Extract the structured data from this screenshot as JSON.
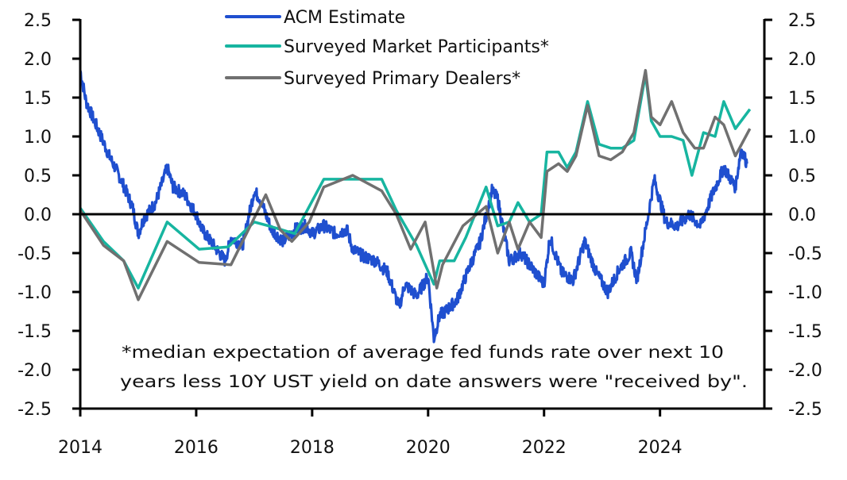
{
  "chart_data": {
    "type": "line",
    "title": "",
    "xlabel": "",
    "ylabel": "",
    "xlim": [
      2014.0,
      2025.8
    ],
    "ylim": [
      -2.5,
      2.5
    ],
    "x_ticks": [
      2014,
      2016,
      2018,
      2020,
      2022,
      2024
    ],
    "x_tick_labels": [
      "2014",
      "2016",
      "2018",
      "2020",
      "2022",
      "2024"
    ],
    "y_ticks": [
      2.5,
      2.0,
      1.5,
      1.0,
      0.5,
      0.0,
      -0.5,
      -1.0,
      -1.5,
      -2.0,
      -2.5
    ],
    "y_tick_labels": [
      "2.5",
      "2.0",
      "1.5",
      "1.0",
      "0.5",
      "0.0",
      "-0.5",
      "-1.0",
      "-1.5",
      "-2.0",
      "-2.5"
    ],
    "y_right_tick_labels": [
      "2.5",
      "2.0",
      "1.5",
      "1.0",
      "0.5",
      "0.0",
      "-0.5",
      "-1.0",
      "-1.5",
      "-2.0",
      "-2.5"
    ],
    "grid": false,
    "legend_position": "top-center",
    "annotation": [
      "*median expectation of average fed funds rate over next 10",
      "years less 10Y UST yield on date answers were \"received by\"."
    ],
    "series": [
      {
        "name": "ACM Estimate",
        "color": "#1f4fcf",
        "x": [
          2014.0,
          2014.1,
          2014.3,
          2014.5,
          2014.7,
          2014.9,
          2015.0,
          2015.1,
          2015.3,
          2015.5,
          2015.6,
          2015.8,
          2016.0,
          2016.1,
          2016.3,
          2016.5,
          2016.6,
          2016.8,
          2017.0,
          2017.1,
          2017.3,
          2017.5,
          2017.7,
          2017.9,
          2018.0,
          2018.2,
          2018.4,
          2018.6,
          2018.7,
          2018.9,
          2019.1,
          2019.3,
          2019.5,
          2019.6,
          2019.8,
          2020.0,
          2020.1,
          2020.2,
          2020.3,
          2020.5,
          2020.7,
          2020.9,
          2021.1,
          2021.2,
          2021.4,
          2021.6,
          2021.8,
          2022.0,
          2022.1,
          2022.3,
          2022.5,
          2022.7,
          2022.9,
          2023.1,
          2023.3,
          2023.5,
          2023.6,
          2023.8,
          2023.9,
          2024.1,
          2024.3,
          2024.5,
          2024.7,
          2024.9,
          2025.1,
          2025.3,
          2025.4,
          2025.5
        ],
        "values": [
          1.85,
          1.45,
          1.1,
          0.75,
          0.45,
          0.1,
          -0.25,
          -0.05,
          0.15,
          0.6,
          0.35,
          0.25,
          0.0,
          -0.2,
          -0.4,
          -0.6,
          -0.3,
          -0.4,
          0.3,
          0.2,
          -0.2,
          -0.35,
          -0.2,
          -0.15,
          -0.25,
          -0.15,
          -0.25,
          -0.2,
          -0.45,
          -0.55,
          -0.6,
          -0.75,
          -1.2,
          -0.9,
          -1.05,
          -0.8,
          -1.6,
          -1.3,
          -1.25,
          -1.1,
          -0.7,
          -0.35,
          0.3,
          0.2,
          -0.6,
          -0.5,
          -0.7,
          -0.9,
          -0.3,
          -0.75,
          -0.85,
          -0.35,
          -0.75,
          -1.0,
          -0.7,
          -0.5,
          -0.85,
          0.0,
          0.45,
          -0.1,
          -0.15,
          0.0,
          -0.15,
          0.25,
          0.6,
          0.35,
          0.85,
          0.65
        ]
      },
      {
        "name": "Surveyed Market Participants*",
        "color": "#17b5a0",
        "x": [
          2014.0,
          2014.4,
          2014.75,
          2015.0,
          2015.5,
          2016.05,
          2016.55,
          2017.0,
          2017.25,
          2017.7,
          2018.2,
          2018.7,
          2019.2,
          2019.45,
          2019.8,
          2020.1,
          2020.2,
          2020.45,
          2020.65,
          2021.0,
          2021.2,
          2021.4,
          2021.55,
          2021.75,
          2021.95,
          2022.05,
          2022.25,
          2022.4,
          2022.55,
          2022.75,
          2022.95,
          2023.15,
          2023.35,
          2023.55,
          2023.75,
          2023.85,
          2024.0,
          2024.2,
          2024.4,
          2024.55,
          2024.75,
          2024.95,
          2025.1,
          2025.3,
          2025.55
        ],
        "values": [
          0.08,
          -0.35,
          -0.6,
          -0.95,
          -0.1,
          -0.45,
          -0.42,
          -0.1,
          -0.15,
          -0.25,
          0.45,
          0.45,
          0.45,
          0.05,
          -0.4,
          -0.9,
          -0.6,
          -0.6,
          -0.3,
          0.35,
          -0.15,
          -0.1,
          0.15,
          -0.1,
          0.0,
          0.8,
          0.8,
          0.6,
          0.8,
          1.45,
          0.9,
          0.85,
          0.85,
          0.95,
          1.8,
          1.2,
          1.0,
          1.0,
          0.95,
          0.5,
          1.05,
          1.0,
          1.45,
          1.1,
          1.35
        ]
      },
      {
        "name": "Surveyed Primary Dealers*",
        "color": "#707070",
        "x": [
          2014.0,
          2014.4,
          2014.75,
          2015.0,
          2015.5,
          2016.05,
          2016.6,
          2017.2,
          2017.45,
          2017.65,
          2017.95,
          2018.2,
          2018.7,
          2019.2,
          2019.45,
          2019.7,
          2019.95,
          2020.15,
          2020.25,
          2020.6,
          2021.0,
          2021.2,
          2021.4,
          2021.55,
          2021.75,
          2021.95,
          2022.05,
          2022.25,
          2022.4,
          2022.55,
          2022.75,
          2022.95,
          2023.15,
          2023.35,
          2023.55,
          2023.75,
          2023.85,
          2024.0,
          2024.2,
          2024.4,
          2024.6,
          2024.75,
          2024.95,
          2025.1,
          2025.3,
          2025.55
        ],
        "values": [
          0.05,
          -0.4,
          -0.6,
          -1.1,
          -0.35,
          -0.62,
          -0.65,
          0.25,
          -0.2,
          -0.35,
          -0.1,
          0.35,
          0.5,
          0.3,
          0.0,
          -0.45,
          -0.1,
          -0.95,
          -0.65,
          -0.15,
          0.1,
          -0.5,
          -0.1,
          -0.45,
          -0.1,
          -0.3,
          0.55,
          0.65,
          0.55,
          0.75,
          1.4,
          0.75,
          0.7,
          0.8,
          1.05,
          1.85,
          1.25,
          1.15,
          1.45,
          1.05,
          0.85,
          0.85,
          1.25,
          1.15,
          0.75,
          1.1
        ]
      }
    ]
  }
}
